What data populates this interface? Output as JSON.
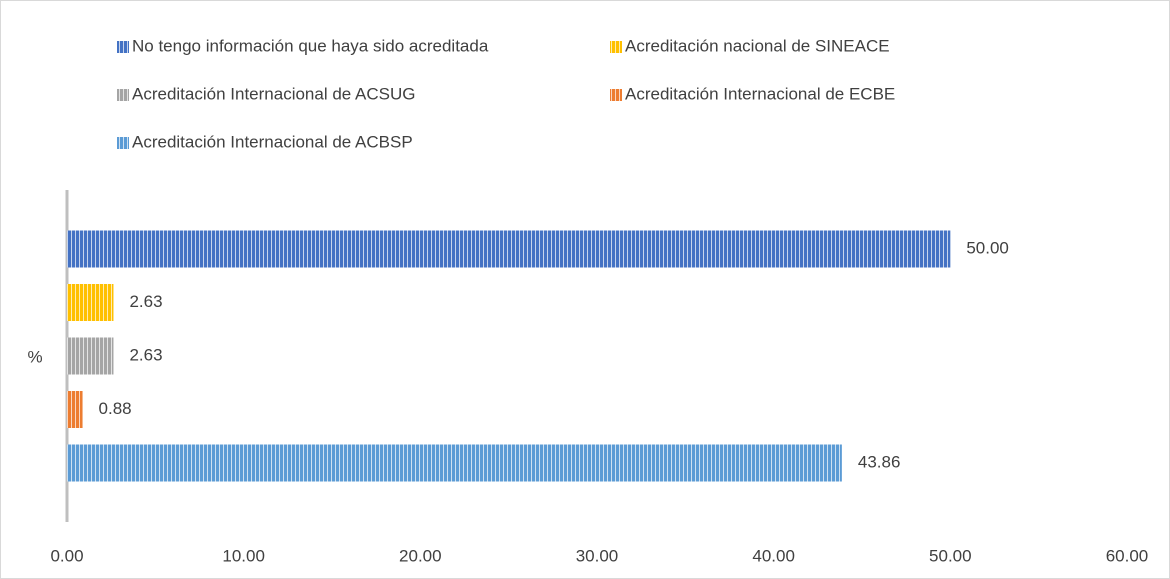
{
  "chart_data": {
    "type": "bar",
    "orientation": "horizontal",
    "categories": [
      "%"
    ],
    "series": [
      {
        "name": "No tengo información que haya sido acreditada",
        "color": "#4472c4",
        "values": [
          50.0
        ],
        "value_labels": [
          "50.00"
        ]
      },
      {
        "name": "Acreditación nacional de SINEACE",
        "color": "#ffc000",
        "values": [
          2.63
        ],
        "value_labels": [
          "2.63"
        ]
      },
      {
        "name": "Acreditación Internacional de ACSUG",
        "color": "#a5a5a5",
        "values": [
          2.63
        ],
        "value_labels": [
          "2.63"
        ]
      },
      {
        "name": "Acreditación Internacional de ECBE",
        "color": "#ed7d31",
        "values": [
          0.88
        ],
        "value_labels": [
          "0.88"
        ]
      },
      {
        "name": "Acreditación Internacional de ACBSP",
        "color": "#5b9bd5",
        "values": [
          43.86
        ],
        "value_labels": [
          "43.86"
        ]
      }
    ],
    "xlim": [
      0,
      60
    ],
    "xticks": [
      {
        "value": 0,
        "label": "0.00"
      },
      {
        "value": 10,
        "label": "10.00"
      },
      {
        "value": 20,
        "label": "20.00"
      },
      {
        "value": 30,
        "label": "30.00"
      },
      {
        "value": 40,
        "label": "40.00"
      },
      {
        "value": 50,
        "label": "50.00"
      },
      {
        "value": 60,
        "label": "60.00"
      }
    ],
    "legend": "top",
    "grid": false
  }
}
